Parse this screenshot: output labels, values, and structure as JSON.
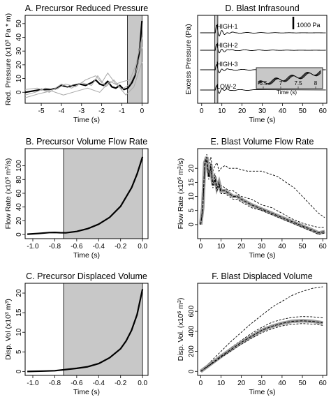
{
  "chart_data": [
    {
      "type": "line",
      "panel": "A",
      "title": "A. Precursor Reduced Pressure",
      "xlabel": "Time (s)",
      "ylabel_parts": [
        "Red. Pressure (x10",
        "3",
        " Pa * m)"
      ],
      "xlim": [
        -5.8,
        0.3
      ],
      "ylim": [
        -8,
        56
      ],
      "xticks": [
        -5,
        -4,
        -3,
        -2,
        -1,
        0
      ],
      "yticks": [
        0,
        10,
        20,
        30,
        40,
        50
      ],
      "shaded_region": [
        -0.72,
        0
      ],
      "series": [
        {
          "role": "mean",
          "x": [
            -5.8,
            -5.4,
            -5.0,
            -4.6,
            -4.2,
            -4.0,
            -3.7,
            -3.4,
            -3.1,
            -2.8,
            -2.5,
            -2.3,
            -2.1,
            -1.9,
            -1.7,
            -1.5,
            -1.3,
            -1.1,
            -0.9,
            -0.7,
            -0.5,
            -0.35,
            -0.2,
            -0.1,
            0
          ],
          "y": [
            0,
            1,
            2,
            2,
            3,
            5,
            4,
            5,
            6,
            5,
            7,
            9,
            6,
            5,
            8,
            4,
            3,
            5,
            2,
            3,
            7,
            12,
            22,
            34,
            52
          ]
        },
        {
          "role": "individual",
          "x": [
            -5.8,
            -5.3,
            -4.8,
            -4.3,
            -3.8,
            -3.3,
            -2.8,
            -2.3,
            -2.0,
            -1.7,
            -1.3,
            -0.9,
            -0.6,
            -0.3,
            0
          ],
          "y": [
            -2,
            0,
            3,
            2,
            6,
            4,
            9,
            12,
            7,
            14,
            6,
            8,
            9,
            20,
            40
          ]
        },
        {
          "role": "individual",
          "x": [
            -5.8,
            -5.2,
            -4.6,
            -4.0,
            -3.5,
            -3.0,
            -2.5,
            -2.2,
            -1.8,
            -1.4,
            -1.0,
            -0.6,
            -0.3,
            0
          ],
          "y": [
            2,
            3,
            0,
            6,
            3,
            7,
            5,
            12,
            4,
            9,
            2,
            6,
            15,
            33
          ]
        },
        {
          "role": "individual",
          "x": [
            -5.8,
            -5.1,
            -4.5,
            -3.9,
            -3.2,
            -2.7,
            -2.1,
            -1.6,
            -1.2,
            -0.8,
            -0.4,
            0
          ],
          "y": [
            -4,
            -1,
            1,
            -2,
            1,
            3,
            0,
            8,
            5,
            -2,
            4,
            22
          ]
        }
      ]
    },
    {
      "type": "line",
      "panel": "D",
      "title": "D. Blast Infrasound",
      "xlabel": "Time (s)",
      "ylabel": "Excess Pressure (Pa)",
      "xlim": [
        -2,
        62
      ],
      "xticks": [
        0,
        10,
        20,
        30,
        40,
        50,
        60
      ],
      "shaded_region": [
        6.5,
        8
      ],
      "scale_bar": "1000 Pa",
      "trace_names": [
        "HIGH-1",
        "HIGH-2",
        "HIGH-3",
        "LOW-2"
      ],
      "inset": {
        "xlabel": "Time (s)",
        "xticks": [
          6.5,
          7,
          7.5,
          8
        ],
        "xlim": [
          6.3,
          8.2
        ]
      }
    },
    {
      "type": "line",
      "panel": "B",
      "title": "B. Precursor Volume Flow Rate",
      "xlabel": "Time (s)",
      "ylabel_parts": [
        "Flow Rate (x10",
        "3",
        " m",
        "3",
        "/s)"
      ],
      "xlim": [
        -1.07,
        0.05
      ],
      "ylim": [
        -6,
        125
      ],
      "xticks": [
        -1.0,
        -0.8,
        -0.6,
        -0.4,
        -0.2,
        0.0
      ],
      "xtick_labels": [
        "-1.0",
        "-0.8",
        "-0.6",
        "-0.4",
        "-0.2",
        "0.0"
      ],
      "yticks": [
        0,
        20,
        40,
        60,
        80,
        100
      ],
      "shaded_region": [
        -0.72,
        0
      ],
      "series": [
        {
          "x": [
            -1.05,
            -0.95,
            -0.85,
            -0.8,
            -0.75,
            -0.7,
            -0.6,
            -0.5,
            -0.4,
            -0.3,
            -0.2,
            -0.1,
            -0.05,
            0
          ],
          "y": [
            0.5,
            1.5,
            2.8,
            3.0,
            2.6,
            2.4,
            4.5,
            8.5,
            15,
            25,
            41,
            68,
            88,
            113
          ]
        }
      ]
    },
    {
      "type": "line",
      "panel": "E",
      "title": "E. Blast Volume Flow Rate",
      "xlabel": "Time (s)",
      "ylabel_parts": [
        "Flow Rate (x10",
        "6",
        " m",
        "3",
        "/s)"
      ],
      "xlim": [
        -1.5,
        62
      ],
      "ylim": [
        -5,
        27
      ],
      "xticks": [
        0,
        10,
        20,
        30,
        40,
        50,
        60
      ],
      "yticks": [
        0,
        5,
        10,
        15,
        20
      ],
      "series": [
        {
          "role": "dashed-high",
          "x": [
            0,
            1,
            2,
            3,
            4,
            5,
            6,
            7,
            8,
            9,
            10,
            12,
            14,
            16,
            18,
            20,
            23,
            26,
            30,
            34,
            38,
            42,
            46,
            50,
            54,
            58,
            61
          ],
          "y": [
            0,
            5,
            22,
            25,
            21,
            24,
            19,
            21,
            22,
            19,
            20,
            21,
            20,
            20,
            20,
            19.5,
            19,
            19,
            19,
            18,
            17,
            15,
            13,
            10,
            7,
            4,
            2.5
          ]
        },
        {
          "role": "dashed-mid",
          "x": [
            0,
            1,
            2,
            3,
            4,
            5,
            6,
            7,
            8,
            9,
            10,
            12,
            14,
            16,
            18,
            20,
            25,
            30,
            35,
            40,
            45,
            50,
            55,
            58,
            61
          ],
          "y": [
            0,
            6,
            21,
            24,
            19,
            22,
            16,
            18,
            14,
            16,
            14,
            13,
            12,
            12,
            11,
            10,
            9,
            7,
            6,
            4,
            2,
            0.5,
            -0.5,
            -1,
            -1
          ]
        },
        {
          "role": "mean",
          "x": [
            0,
            1,
            2,
            3,
            4,
            5,
            6,
            7,
            8,
            9,
            10,
            12,
            14,
            16,
            18,
            20,
            25,
            30,
            35,
            40,
            45,
            50,
            55,
            58,
            61
          ],
          "y": [
            0,
            6,
            22,
            24,
            17,
            21,
            14,
            17,
            13,
            15,
            12,
            12,
            11,
            10,
            10,
            9,
            7,
            5.5,
            4,
            2.5,
            1,
            -0.5,
            -2,
            -3,
            -2.5
          ]
        },
        {
          "role": "dashed-low",
          "x": [
            0,
            1,
            2,
            3,
            4,
            5,
            6,
            7,
            8,
            9,
            10,
            12,
            14,
            16,
            18,
            20,
            25,
            30,
            35,
            40,
            45,
            50,
            55,
            58,
            61
          ],
          "y": [
            0,
            5,
            21,
            23,
            16,
            20,
            13,
            16,
            12,
            14,
            11,
            11,
            10,
            9,
            9,
            8,
            6,
            5,
            3.5,
            2,
            0.5,
            -1,
            -2.5,
            -3.5,
            -3
          ]
        }
      ]
    },
    {
      "type": "line",
      "panel": "C",
      "title": "C. Precursor Displaced Volume",
      "xlabel": "Time (s)",
      "ylabel_parts": [
        "Disp. Vol (x10",
        "3",
        " m",
        "3",
        ")"
      ],
      "xlim": [
        -1.07,
        0.05
      ],
      "ylim": [
        -1,
        22.5
      ],
      "xticks": [
        -1.0,
        -0.8,
        -0.6,
        -0.4,
        -0.2,
        0.0
      ],
      "xtick_labels": [
        "-1.0",
        "-0.8",
        "-0.6",
        "-0.4",
        "-0.2",
        "0.0"
      ],
      "yticks": [
        0,
        5,
        10,
        15,
        20
      ],
      "shaded_region": [
        -0.72,
        0
      ],
      "series": [
        {
          "x": [
            -1.05,
            -0.9,
            -0.8,
            -0.7,
            -0.6,
            -0.5,
            -0.4,
            -0.3,
            -0.2,
            -0.15,
            -0.1,
            -0.05,
            0
          ],
          "y": [
            0,
            0.1,
            0.2,
            0.5,
            0.8,
            1.2,
            2.0,
            3.5,
            5.8,
            7.8,
            10.5,
            14.5,
            21
          ]
        }
      ]
    },
    {
      "type": "line",
      "panel": "F",
      "title": "F. Blast Displaced Volume",
      "xlabel": "Time (s)",
      "ylabel_parts": [
        "Disp. Vol. (x10",
        "6",
        " m",
        "3",
        ")"
      ],
      "xlim": [
        -1.5,
        62
      ],
      "ylim": [
        -40,
        880
      ],
      "xticks": [
        0,
        10,
        20,
        30,
        40,
        50,
        60
      ],
      "yticks": [
        0,
        200,
        400,
        600
      ],
      "series": [
        {
          "role": "dashed-high",
          "x": [
            0,
            5,
            10,
            15,
            20,
            25,
            30,
            35,
            40,
            45,
            50,
            55,
            60
          ],
          "y": [
            0,
            100,
            200,
            300,
            390,
            480,
            560,
            640,
            700,
            760,
            800,
            830,
            845
          ]
        },
        {
          "role": "dashed-upper",
          "x": [
            0,
            5,
            10,
            15,
            20,
            25,
            30,
            35,
            40,
            45,
            50,
            55,
            60
          ],
          "y": [
            0,
            80,
            160,
            240,
            310,
            380,
            440,
            490,
            520,
            540,
            548,
            545,
            535
          ]
        },
        {
          "role": "mean",
          "x": [
            0,
            5,
            10,
            15,
            20,
            25,
            30,
            35,
            40,
            45,
            50,
            55,
            60
          ],
          "y": [
            0,
            75,
            150,
            220,
            290,
            350,
            410,
            450,
            480,
            500,
            505,
            500,
            485
          ]
        },
        {
          "role": "dashed-lower",
          "x": [
            0,
            5,
            10,
            15,
            20,
            25,
            30,
            35,
            40,
            45,
            50,
            55,
            60
          ],
          "y": [
            0,
            70,
            140,
            205,
            270,
            330,
            385,
            425,
            455,
            470,
            478,
            472,
            460
          ]
        }
      ]
    }
  ]
}
